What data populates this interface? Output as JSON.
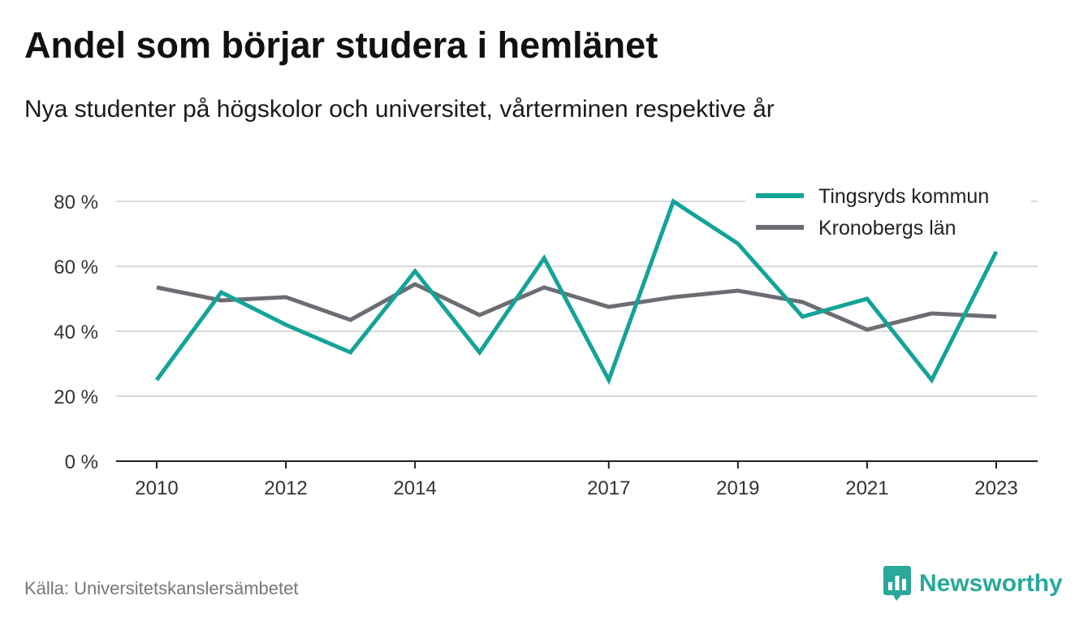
{
  "header": {
    "title": "Andel som börjar studera i hemlänet",
    "subtitle": "Nya studenter på högskolor och universitet, vårterminen respektive år"
  },
  "footer": {
    "source": "Källa: Universitetskanslersämbetet",
    "brand": "Newsworthy",
    "brand_icon": "bar-chart-speech-bubble-icon",
    "brand_color": "#2aa89a"
  },
  "chart_data": {
    "type": "line",
    "title": "Andel som börjar studera i hemlänet",
    "subtitle": "Nya studenter på högskolor och universitet, vårterminen respektive år",
    "x": [
      2010,
      2011,
      2012,
      2013,
      2014,
      2015,
      2016,
      2017,
      2018,
      2019,
      2020,
      2021,
      2022,
      2023
    ],
    "x_ticks": [
      2010,
      2012,
      2014,
      2017,
      2019,
      2021,
      2023
    ],
    "y_ticks": [
      0,
      20,
      40,
      60,
      80
    ],
    "y_tick_labels": [
      "0 %",
      "20 %",
      "40 %",
      "60 %",
      "80 %"
    ],
    "ylim": [
      0,
      80
    ],
    "grid": true,
    "legend_position": "top-right",
    "series": [
      {
        "name": "Tingsryds kommun",
        "color": "#14a397",
        "values": [
          25,
          52,
          42,
          33.5,
          58.5,
          33.5,
          62.5,
          25,
          80,
          67,
          44.5,
          50,
          25,
          64.5
        ]
      },
      {
        "name": "Kronobergs län",
        "color": "#6e6c73",
        "values": [
          53.5,
          49.5,
          50.5,
          43.5,
          54.5,
          45,
          53.5,
          47.5,
          50.5,
          52.5,
          49,
          40.5,
          45.5,
          44.5
        ]
      }
    ]
  }
}
